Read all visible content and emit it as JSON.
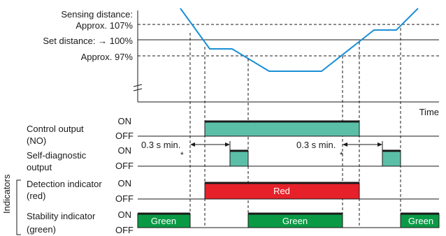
{
  "distance_labels": {
    "sensing_line1": "Sensing distance:",
    "sensing_line2": "Approx. 107%",
    "set": "Set distance: → 100%",
    "approx97": "Approx. 97%"
  },
  "time_label": "Time",
  "signals": [
    {
      "label_line1": "Control output",
      "label_line2": "(NO)",
      "on": "ON",
      "off": "OFF"
    },
    {
      "label_line1": "Self-diagnostic",
      "label_line2": "output",
      "on": "ON",
      "off": "OFF"
    },
    {
      "label_line1": "Detection indicator",
      "label_line2": "(red)",
      "on": "ON",
      "off": "OFF"
    },
    {
      "label_line1": "Stability indicator",
      "label_line2": "(green)",
      "on": "ON",
      "off": "OFF"
    }
  ],
  "indicators_group_label": "Indicators",
  "delay_label_1": "0.3 s min.",
  "delay_label_2": "0.3 s min.",
  "asterisk_1": "*",
  "asterisk_2": "*",
  "bar_labels": {
    "red": "Red",
    "green_1": "Green",
    "green_2": "Green",
    "green_3": "Green"
  },
  "colors": {
    "teal": "#5bbfa8",
    "red": "#e62129",
    "green": "#0a9a45",
    "line": "#1a1a1a",
    "curve": "#1a8fd6"
  }
}
